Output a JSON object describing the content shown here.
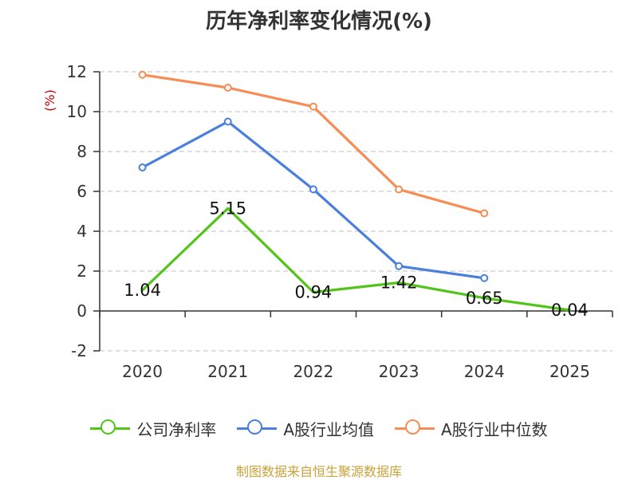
{
  "title": "历年净利率变化情况(%)",
  "source_text": "制图数据来自恒生聚源数据库",
  "colors": {
    "axis": "#333333",
    "grid": "#cccccc",
    "ylabel": "#cc0000"
  },
  "chart_data": {
    "type": "line",
    "title": "历年净利率变化情况(%)",
    "ylabel": "(%)",
    "xlabel": "",
    "categories": [
      "2020",
      "2021",
      "2022",
      "2023",
      "2024",
      "2025"
    ],
    "ylim": [
      -2,
      12
    ],
    "yticks": [
      -2,
      0,
      2,
      4,
      6,
      8,
      10,
      12
    ],
    "grid": true,
    "legend_position": "bottom",
    "series": [
      {
        "name": "公司净利率",
        "color": "#52c41a",
        "values": [
          1.04,
          5.15,
          0.94,
          1.42,
          0.65,
          0.04
        ],
        "labels": [
          "1.04",
          "5.15",
          "0.94",
          "1.42",
          "0.65",
          "0.04"
        ],
        "markers": false
      },
      {
        "name": "A股行业均值",
        "color": "#4a7fdd",
        "values": [
          7.2,
          9.5,
          6.1,
          2.25,
          1.65,
          null
        ],
        "markers": true
      },
      {
        "name": "A股行业中位数",
        "color": "#f78c55",
        "values": [
          11.85,
          11.2,
          10.25,
          6.1,
          4.9,
          null
        ],
        "markers": true
      }
    ]
  }
}
